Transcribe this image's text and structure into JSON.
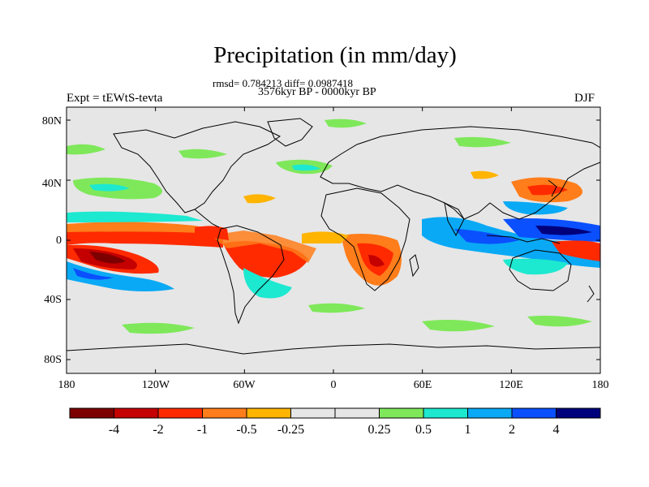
{
  "title": "Precipitation (in mm/day)",
  "stats": "rmsd= 0.784213 diff= 0.0987418",
  "period": "3576kyr BP - 0000kyr BP",
  "expt": "Expt = tEWtS-tevta",
  "season": "DJF",
  "yaxis": [
    "80N",
    "40N",
    "0",
    "40S",
    "80S"
  ],
  "xaxis": [
    "180",
    "120W",
    "60W",
    "0",
    "60E",
    "120E",
    "180"
  ],
  "colorbar": {
    "colors": [
      "#7d0000",
      "#c40000",
      "#ff2a00",
      "#ff7d1a",
      "#ffb400",
      "#e6e6e6",
      "#e6e6e6",
      "#7fe85a",
      "#1de8d0",
      "#0aa9f5",
      "#0a50ff",
      "#00007d"
    ],
    "labels": [
      "-4",
      "-2",
      "-1",
      "-0.5",
      "-0.25",
      "0.25",
      "0.5",
      "1",
      "2",
      "4"
    ]
  },
  "colors": {
    "ocean_bg": "#e6e6e6",
    "coast": "#000000"
  }
}
